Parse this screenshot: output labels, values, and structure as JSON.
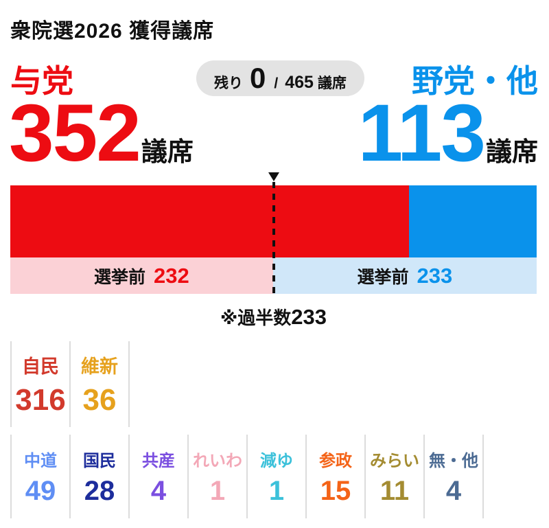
{
  "title": "衆院選2026 獲得議席",
  "summary": {
    "ruling": {
      "label": "与党",
      "seats": "352",
      "unit": "議席",
      "color": "#ed0c12"
    },
    "opposition": {
      "label": "野党・他",
      "seats": "113",
      "unit": "議席",
      "color": "#0a92eb"
    },
    "remaining": {
      "label": "残り",
      "value": "0",
      "separator": "/",
      "total": "465",
      "unit": "議席",
      "bg": "#e3e3e3",
      "text_color": "#111111"
    }
  },
  "bar": {
    "pre_label": "選挙前",
    "ruling_pre": "232",
    "opposition_pre": "233",
    "colors": {
      "ruling": "#ed0c12",
      "opposition": "#0a92eb",
      "ruling_pre_bg": "#fbd1d6",
      "opposition_pre_bg": "#d0e7f9"
    }
  },
  "majority_note": {
    "prefix": "※過半数",
    "value": "233"
  },
  "parties_row1": [
    {
      "name": "自民",
      "seats": "316",
      "color": "#d23a2c"
    },
    {
      "name": "維新",
      "seats": "36",
      "color": "#e6a11d"
    }
  ],
  "parties_row2": [
    {
      "name": "中道",
      "seats": "49",
      "color": "#5f8ef4"
    },
    {
      "name": "国民",
      "seats": "28",
      "color": "#1d2d9c"
    },
    {
      "name": "共産",
      "seats": "4",
      "color": "#7b4fe0"
    },
    {
      "name": "れいわ",
      "seats": "1",
      "color": "#f3a8b7"
    },
    {
      "name": "減ゆ",
      "seats": "1",
      "color": "#3cc1da"
    },
    {
      "name": "参政",
      "seats": "15",
      "color": "#f46317"
    },
    {
      "name": "みらい",
      "seats": "11",
      "color": "#a48c32"
    },
    {
      "name": "無・他",
      "seats": "4",
      "color": "#4c6b93"
    }
  ],
  "chart_data": {
    "type": "bar",
    "title": "衆院選2026 獲得議席",
    "total_seats": 465,
    "remaining_seats": 0,
    "majority_threshold": 233,
    "blocs": [
      {
        "name": "与党",
        "seats": 352,
        "pre_election_seats": 232,
        "color": "#ed0c12"
      },
      {
        "name": "野党・他",
        "seats": 113,
        "pre_election_seats": 233,
        "color": "#0a92eb"
      }
    ],
    "parties": [
      {
        "name": "自民",
        "seats": 316
      },
      {
        "name": "維新",
        "seats": 36
      },
      {
        "name": "中道",
        "seats": 49
      },
      {
        "name": "国民",
        "seats": 28
      },
      {
        "name": "共産",
        "seats": 4
      },
      {
        "name": "れいわ",
        "seats": 1
      },
      {
        "name": "減ゆ",
        "seats": 1
      },
      {
        "name": "参政",
        "seats": 15
      },
      {
        "name": "みらい",
        "seats": 11
      },
      {
        "name": "無・他",
        "seats": 4
      }
    ]
  }
}
